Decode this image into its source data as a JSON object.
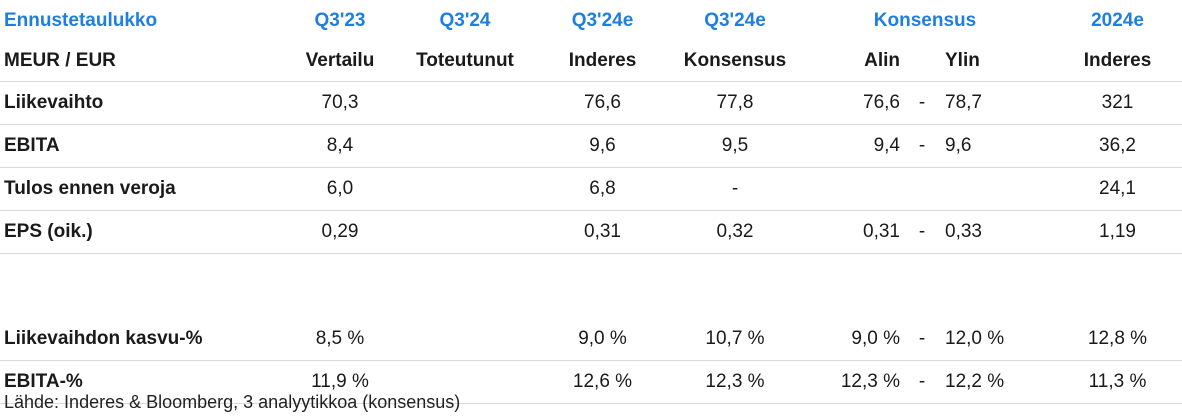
{
  "header1": {
    "title": "Ennustetaulukko",
    "q323": "Q3'23",
    "q324": "Q3'24",
    "q324e_a": "Q3'24e",
    "q324e_b": "Q3'24e",
    "konsensus": "Konsensus",
    "y2024e": "2024e"
  },
  "header2": {
    "unit": "MEUR / EUR",
    "vertailu": "Vertailu",
    "toteutunut": "Toteutunut",
    "inderes": "Inderes",
    "konsensus": "Konsensus",
    "alin": "Alin",
    "ylin": "Ylin",
    "inderes2": "Inderes"
  },
  "rows": [
    {
      "label": "Liikevaihto",
      "vertailu": "70,3",
      "toteutunut": "",
      "inderes": "76,6",
      "konsensus": "77,8",
      "alin": "76,6",
      "dash": "-",
      "ylin": "78,7",
      "y2024": "321"
    },
    {
      "label": "EBITA",
      "vertailu": "8,4",
      "toteutunut": "",
      "inderes": "9,6",
      "konsensus": "9,5",
      "alin": "9,4",
      "dash": "-",
      "ylin": "9,6",
      "y2024": "36,2"
    },
    {
      "label": "Tulos ennen veroja",
      "vertailu": "6,0",
      "toteutunut": "",
      "inderes": "6,8",
      "konsensus": "-",
      "alin": "",
      "dash": "",
      "ylin": "",
      "y2024": "24,1"
    },
    {
      "label": "EPS (oik.)",
      "vertailu": "0,29",
      "toteutunut": "",
      "inderes": "0,31",
      "konsensus": "0,32",
      "alin": "0,31",
      "dash": "-",
      "ylin": "0,33",
      "y2024": "1,19"
    },
    {
      "label": "Liikevaihdon kasvu-%",
      "vertailu": "8,5 %",
      "toteutunut": "",
      "inderes": "9,0 %",
      "konsensus": "10,7 %",
      "alin": "9,0 %",
      "dash": "-",
      "ylin": "12,0 %",
      "y2024": "12,8 %"
    },
    {
      "label": "EBITA-%",
      "vertailu": "11,9 %",
      "toteutunut": "",
      "inderes": "12,6 %",
      "konsensus": "12,3 %",
      "alin": "12,3 %",
      "dash": "-",
      "ylin": "12,2 %",
      "y2024": "11,3 %"
    }
  ],
  "source": "Lähde: Inderes & Bloomberg, 3 analyytikkoa (konsensus)"
}
